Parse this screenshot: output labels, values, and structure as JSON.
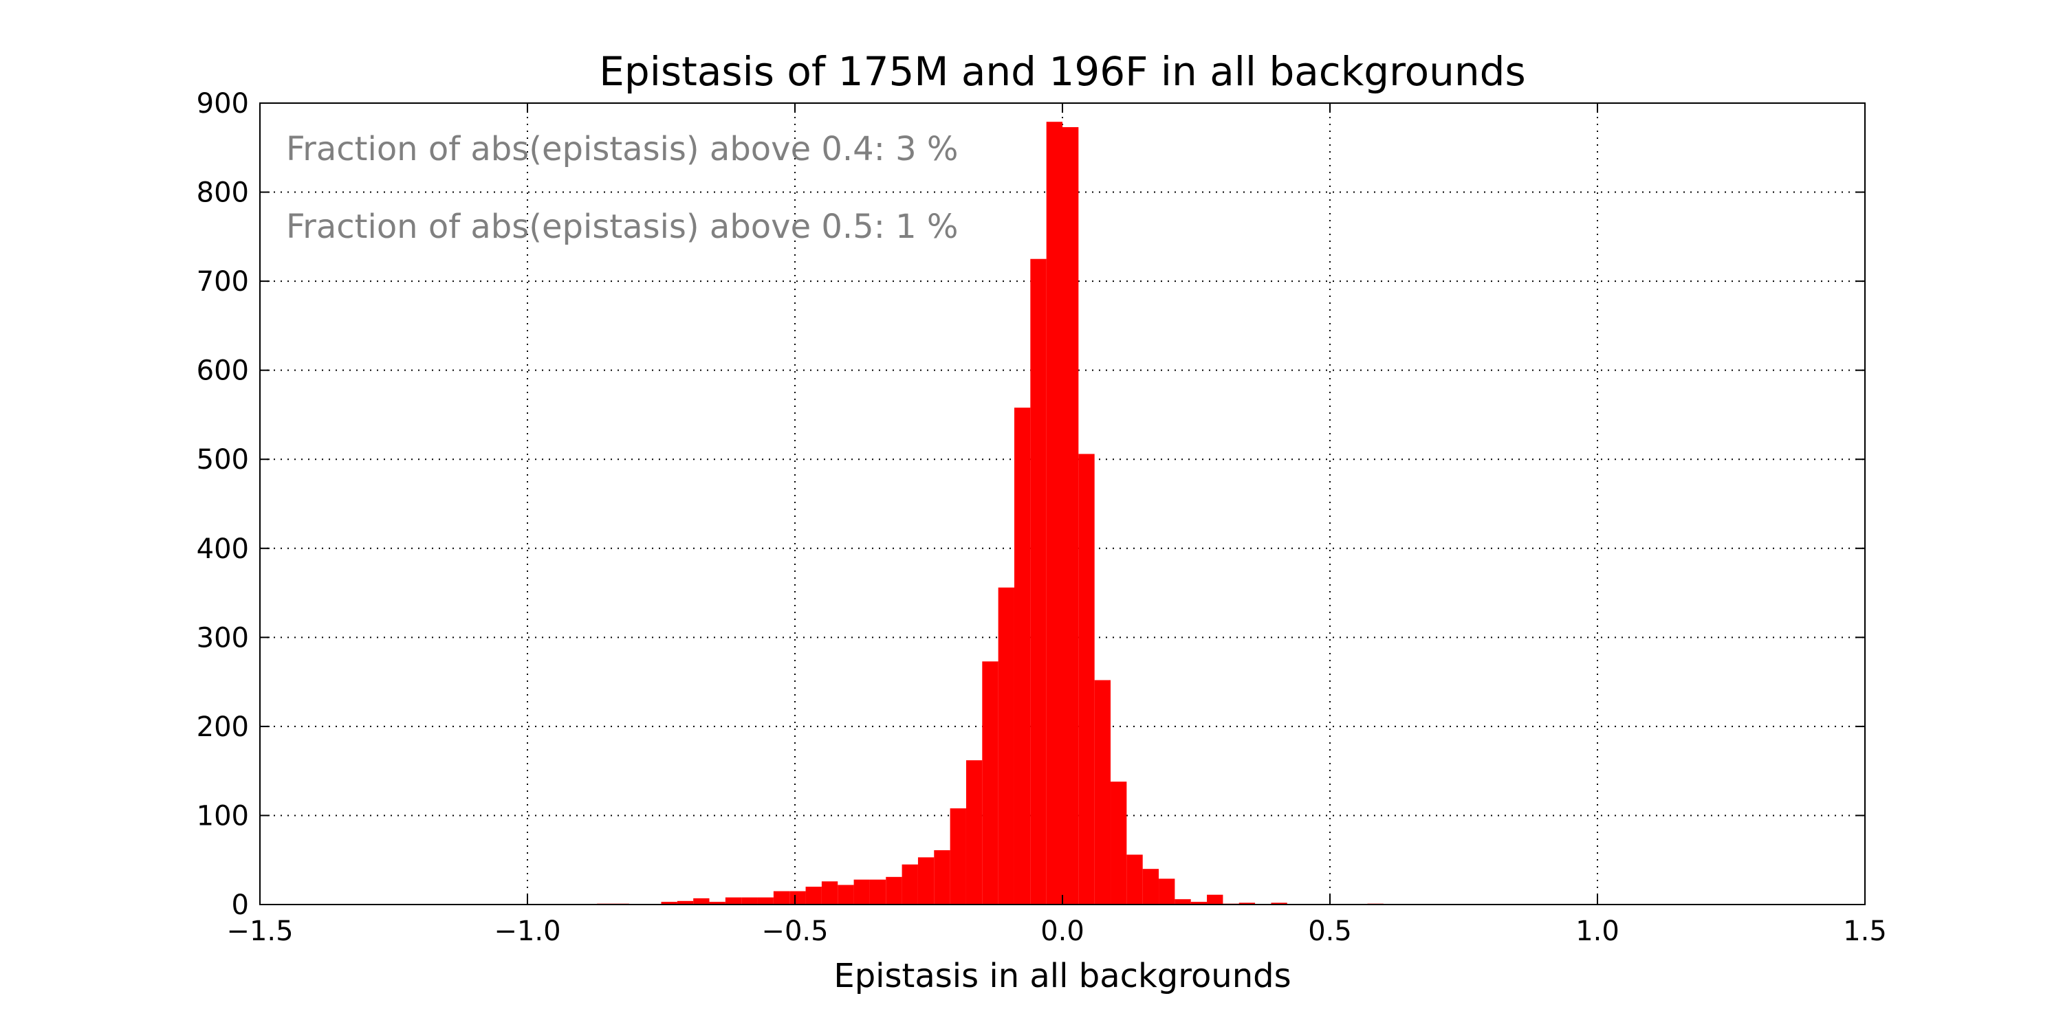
{
  "chart_data": {
    "type": "bar",
    "title": "Epistasis of 175M and 196F in all backgrounds",
    "xlabel": "Epistasis in all backgrounds",
    "ylabel": "",
    "xlim": [
      -1.5,
      1.5
    ],
    "ylim": [
      0,
      900
    ],
    "x_ticks": [
      -1.5,
      -1.0,
      -0.5,
      0.0,
      0.5,
      1.0,
      1.5
    ],
    "x_tick_labels": [
      "−1.5",
      "−1.0",
      "−0.5",
      "0.0",
      "0.5",
      "1.0",
      "1.5"
    ],
    "y_ticks": [
      0,
      100,
      200,
      300,
      400,
      500,
      600,
      700,
      800,
      900
    ],
    "y_tick_labels": [
      "0",
      "100",
      "200",
      "300",
      "400",
      "500",
      "600",
      "700",
      "800",
      "900"
    ],
    "grid": true,
    "bar_color": "#ff0000",
    "bin_width": 0.03,
    "bins": [
      {
        "x0": -0.87,
        "count": 1
      },
      {
        "x0": -0.84,
        "count": 1
      },
      {
        "x0": -0.75,
        "count": 3
      },
      {
        "x0": -0.72,
        "count": 4
      },
      {
        "x0": -0.69,
        "count": 7
      },
      {
        "x0": -0.66,
        "count": 3
      },
      {
        "x0": -0.63,
        "count": 8
      },
      {
        "x0": -0.6,
        "count": 8
      },
      {
        "x0": -0.57,
        "count": 8
      },
      {
        "x0": -0.54,
        "count": 15
      },
      {
        "x0": -0.51,
        "count": 15
      },
      {
        "x0": -0.48,
        "count": 20
      },
      {
        "x0": -0.45,
        "count": 26
      },
      {
        "x0": -0.42,
        "count": 22
      },
      {
        "x0": -0.39,
        "count": 28
      },
      {
        "x0": -0.36,
        "count": 28
      },
      {
        "x0": -0.33,
        "count": 31
      },
      {
        "x0": -0.3,
        "count": 45
      },
      {
        "x0": -0.27,
        "count": 53
      },
      {
        "x0": -0.24,
        "count": 61
      },
      {
        "x0": -0.21,
        "count": 108
      },
      {
        "x0": -0.18,
        "count": 162
      },
      {
        "x0": -0.15,
        "count": 273
      },
      {
        "x0": -0.12,
        "count": 356
      },
      {
        "x0": -0.09,
        "count": 558
      },
      {
        "x0": -0.06,
        "count": 725
      },
      {
        "x0": -0.03,
        "count": 879
      },
      {
        "x0": 0.0,
        "count": 873
      },
      {
        "x0": 0.03,
        "count": 506
      },
      {
        "x0": 0.06,
        "count": 252
      },
      {
        "x0": 0.09,
        "count": 138
      },
      {
        "x0": 0.12,
        "count": 56
      },
      {
        "x0": 0.15,
        "count": 40
      },
      {
        "x0": 0.18,
        "count": 29
      },
      {
        "x0": 0.21,
        "count": 6
      },
      {
        "x0": 0.24,
        "count": 3
      },
      {
        "x0": 0.27,
        "count": 11
      },
      {
        "x0": 0.3,
        "count": 1
      },
      {
        "x0": 0.33,
        "count": 2
      },
      {
        "x0": 0.39,
        "count": 2
      },
      {
        "x0": 0.57,
        "count": 1
      }
    ],
    "annotations": [
      "Fraction of abs(epistasis) above 0.4: 3 %",
      "Fraction of abs(epistasis) above 0.5: 1 %"
    ]
  }
}
